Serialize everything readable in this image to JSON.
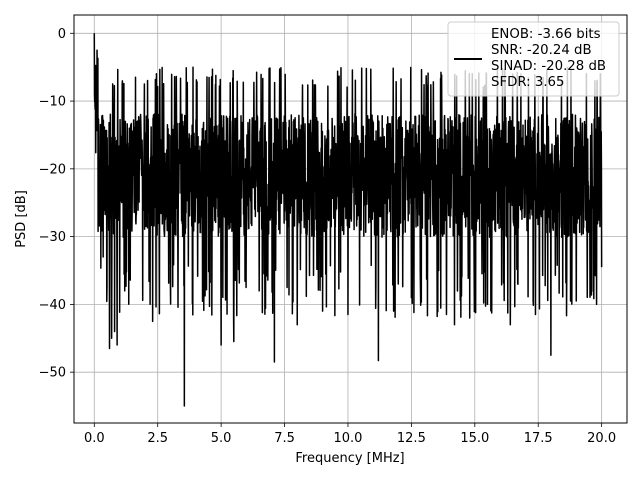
{
  "chart_data": {
    "type": "line",
    "title": "",
    "xlabel": "Frequency [MHz]",
    "ylabel": "PSD [dB]",
    "xlim": [
      -0.8,
      21.0
    ],
    "ylim": [
      -57.5,
      2.7
    ],
    "xticks": [
      0.0,
      2.5,
      5.0,
      7.5,
      10.0,
      12.5,
      15.0,
      17.5,
      20.0
    ],
    "xtick_labels": [
      "0.0",
      "2.5",
      "5.0",
      "7.5",
      "10.0",
      "12.5",
      "15.0",
      "17.5",
      "20.0"
    ],
    "yticks": [
      0,
      -10,
      -20,
      -30,
      -40,
      -50
    ],
    "ytick_labels": [
      "0",
      "−10",
      "−20",
      "−30",
      "−40",
      "−50"
    ],
    "grid": true,
    "legend_position": "top-right",
    "series": [
      {
        "name": "ENOB: -3.66 bits\nSNR: -20.24 dB\nSINAD: -20.28 dB\nSFDR: 3.65",
        "color": "#000000",
        "noise_floor_db": -20.3,
        "noise_range_db": [
          -34,
          -8
        ],
        "points": [
          [
            0.0,
            0.0
          ],
          [
            0.02,
            -6.0
          ],
          [
            0.05,
            -16.0
          ],
          [
            0.08,
            -11.0
          ],
          [
            0.12,
            -20.0
          ],
          [
            0.2,
            -28.0
          ],
          [
            0.35,
            -33.0
          ],
          [
            0.5,
            -37.5
          ],
          [
            0.6,
            -46.5
          ],
          [
            0.68,
            -45.0
          ],
          [
            0.8,
            -44.0
          ],
          [
            0.9,
            -46.0
          ],
          [
            1.2,
            -38.0
          ],
          [
            2.2,
            -40.0
          ],
          [
            2.3,
            -42.5
          ],
          [
            3.0,
            -37.0
          ],
          [
            3.55,
            -55.0
          ],
          [
            5.0,
            -46.0
          ],
          [
            5.5,
            -45.5
          ],
          [
            6.5,
            -38.0
          ],
          [
            7.1,
            -48.5
          ],
          [
            7.6,
            -37.5
          ],
          [
            8.0,
            -43.0
          ],
          [
            9.0,
            -41.0
          ],
          [
            10.0,
            -41.5
          ],
          [
            11.2,
            -48.3
          ],
          [
            11.8,
            -41.0
          ],
          [
            12.5,
            -39.0
          ],
          [
            14.2,
            -43.0
          ],
          [
            14.8,
            -42.0
          ],
          [
            15.5,
            -40.0
          ],
          [
            16.4,
            -43.0
          ],
          [
            17.3,
            -39.5
          ],
          [
            18.0,
            -47.5
          ],
          [
            19.0,
            -39.5
          ],
          [
            19.8,
            -40.0
          ],
          [
            20.0,
            -34.5
          ]
        ]
      }
    ]
  }
}
